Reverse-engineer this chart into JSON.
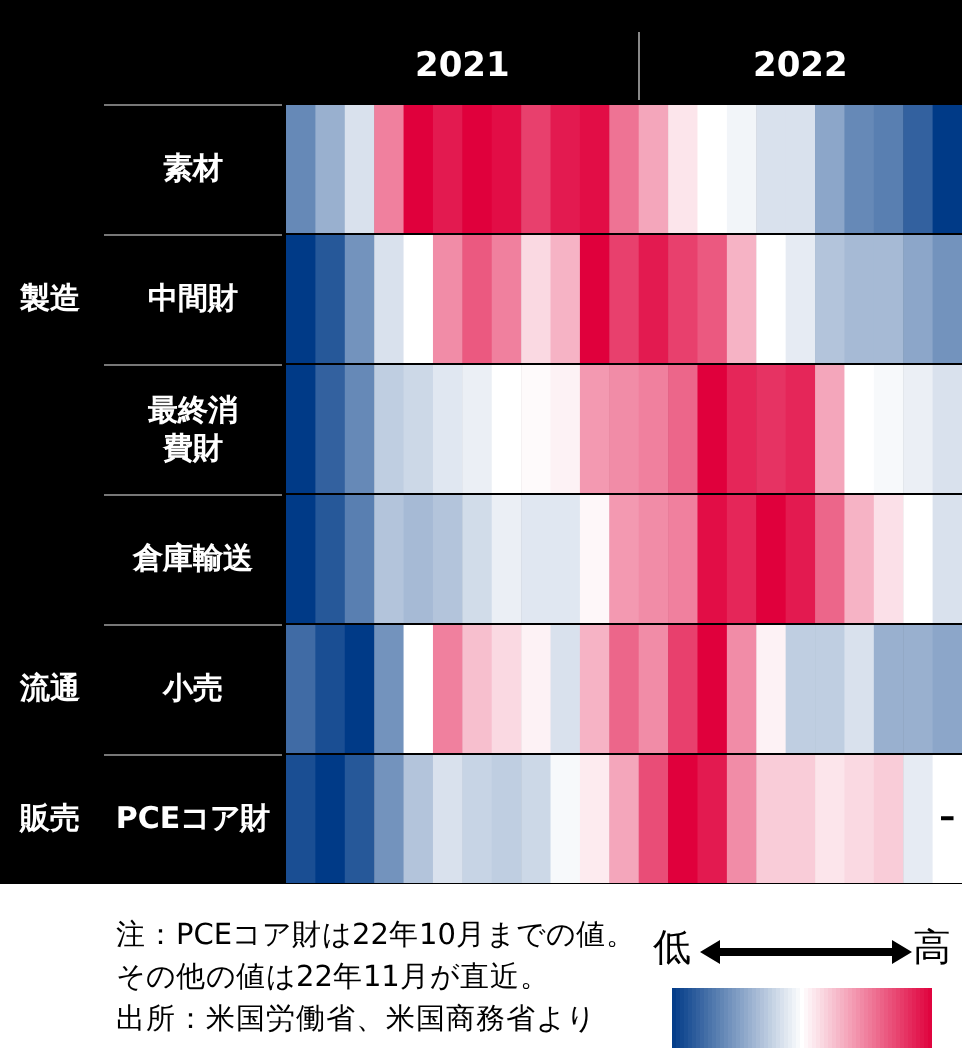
{
  "chart_data": {
    "type": "heatmap",
    "categories": [
      null,
      null,
      null,
      null,
      null,
      null,
      null,
      null,
      null,
      null,
      null,
      null,
      null,
      null,
      null,
      null,
      null,
      null,
      null,
      null,
      null,
      null,
      null
    ],
    "y_categories": [
      "素材",
      "中間財",
      "最終消費財",
      "倉庫輸送",
      "小売",
      "PCEコア財"
    ],
    "y2_categories": [
      null,
      "製造",
      null,
      null,
      "流通",
      "販売"
    ],
    "cells": [
      [
        -0.6,
        -0.4,
        -0.15,
        0.5,
        1,
        0.9,
        1,
        0.95,
        0.75,
        0.9,
        0.95,
        0.55,
        0.35,
        0.1,
        0,
        -0.05,
        -0.15,
        -0.15,
        -0.45,
        -0.6,
        -0.65,
        -0.8,
        -1
      ],
      [
        -1,
        -0.85,
        -0.55,
        -0.15,
        0,
        0.45,
        0.65,
        0.5,
        0.15,
        0.3,
        1,
        0.75,
        0.9,
        0.75,
        0.65,
        0.3,
        0,
        -0.1,
        -0.3,
        -0.35,
        -0.35,
        -0.45,
        -0.55
      ],
      [
        -1,
        -0.8,
        -0.6,
        -0.25,
        -0.2,
        -0.12,
        -0.08,
        0,
        0.02,
        0.05,
        0.4,
        0.45,
        0.5,
        0.6,
        1,
        0.85,
        0.8,
        0.85,
        0.35,
        0,
        -0.03,
        -0.08,
        -0.15
      ],
      [
        -1,
        -0.85,
        -0.65,
        -0.3,
        -0.35,
        -0.3,
        -0.18,
        -0.08,
        -0.12,
        -0.12,
        0.03,
        0.4,
        0.45,
        0.5,
        0.95,
        0.85,
        1,
        0.9,
        0.6,
        0.3,
        0.12,
        0,
        -0.15
      ],
      [
        -0.75,
        -0.9,
        -1,
        -0.55,
        0,
        0.5,
        0.25,
        0.15,
        0.05,
        -0.15,
        0.3,
        0.6,
        0.45,
        0.75,
        1,
        0.45,
        0.05,
        -0.25,
        -0.25,
        -0.15,
        -0.4,
        -0.4,
        -0.45
      ],
      [
        -0.9,
        -1,
        -0.85,
        -0.55,
        -0.3,
        -0.15,
        -0.22,
        -0.25,
        -0.2,
        -0.03,
        0.08,
        0.35,
        0.7,
        1,
        0.9,
        0.45,
        0.2,
        0.2,
        0.1,
        0.15,
        0.2,
        -0.1,
        null
      ]
    ],
    "cell_labels": [
      [
        null,
        null,
        null,
        null,
        null,
        null,
        null,
        null,
        null,
        null,
        null,
        null,
        null,
        null,
        null,
        null,
        null,
        null,
        null,
        null,
        null,
        null,
        null
      ],
      [
        null,
        null,
        null,
        null,
        null,
        null,
        null,
        null,
        null,
        null,
        null,
        null,
        null,
        null,
        null,
        null,
        null,
        null,
        null,
        null,
        null,
        null,
        null
      ],
      [
        null,
        null,
        null,
        null,
        null,
        null,
        null,
        null,
        null,
        null,
        null,
        null,
        null,
        null,
        null,
        null,
        null,
        null,
        null,
        null,
        null,
        null,
        null
      ],
      [
        null,
        null,
        null,
        null,
        null,
        null,
        null,
        null,
        null,
        null,
        null,
        null,
        null,
        null,
        null,
        null,
        null,
        null,
        null,
        null,
        null,
        null,
        null
      ],
      [
        null,
        null,
        null,
        null,
        null,
        null,
        null,
        null,
        null,
        null,
        null,
        null,
        null,
        null,
        null,
        null,
        null,
        null,
        null,
        null,
        null,
        null,
        null
      ],
      [
        null,
        null,
        null,
        null,
        null,
        null,
        null,
        null,
        null,
        null,
        null,
        null,
        null,
        null,
        null,
        null,
        null,
        null,
        null,
        null,
        null,
        null,
        "–"
      ]
    ],
    "clim": [
      -1,
      1
    ],
    "cticks": [
      {
        "value": -1,
        "label": "低"
      },
      {
        "value": 1,
        "label": "高"
      }
    ],
    "annotations": [
      "2021",
      "2022",
      "注：PCEコア財は22年10月までの値。",
      "その他の値は22年11月が直近。",
      "出所：米国労働省、米国商務省より"
    ]
  }
}
